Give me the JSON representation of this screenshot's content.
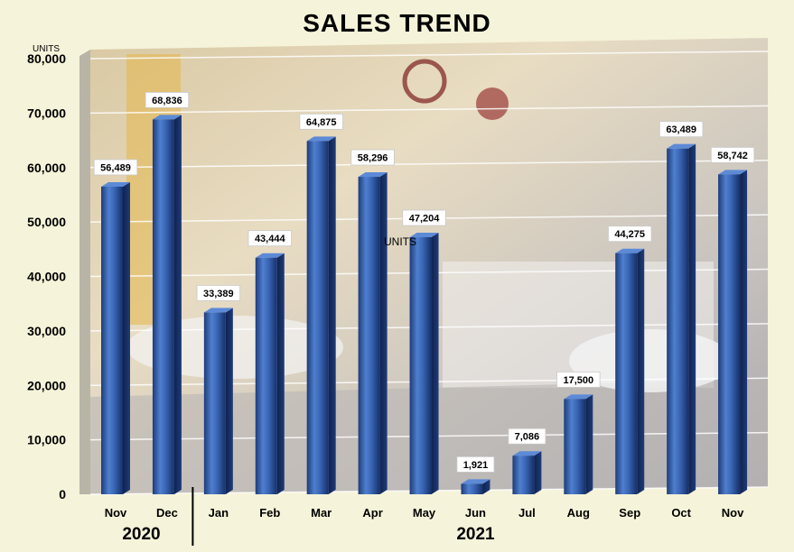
{
  "chart_data": {
    "type": "bar",
    "title": "SALES TREND",
    "ylabel": "UNITS",
    "ylim": [
      0,
      80000
    ],
    "yticks": [
      "0",
      "10,000",
      "20,000",
      "30,000",
      "40,000",
      "50,000",
      "60,000",
      "70,000",
      "80,000"
    ],
    "categories": [
      "Nov",
      "Dec",
      "Jan",
      "Feb",
      "Mar",
      "Apr",
      "May",
      "Jun",
      "Jul",
      "Aug",
      "Sep",
      "Oct",
      "Nov"
    ],
    "values": [
      56489,
      68836,
      33389,
      43444,
      64875,
      58296,
      47204,
      1921,
      7086,
      17500,
      44275,
      63489,
      58742
    ],
    "data_labels": [
      "56,489",
      "68,836",
      "33,389",
      "43,444",
      "64,875",
      "58,296",
      "47,204",
      "1,921",
      "7,086",
      "17,500",
      "44,275",
      "63,489",
      "58,742"
    ],
    "groups": [
      {
        "label": "2020",
        "count": 2
      },
      {
        "label": "2021",
        "count": 11
      }
    ],
    "annotations": [
      "UNITS"
    ],
    "grid": true,
    "legend": "none",
    "bar_color": "#2f5597"
  }
}
